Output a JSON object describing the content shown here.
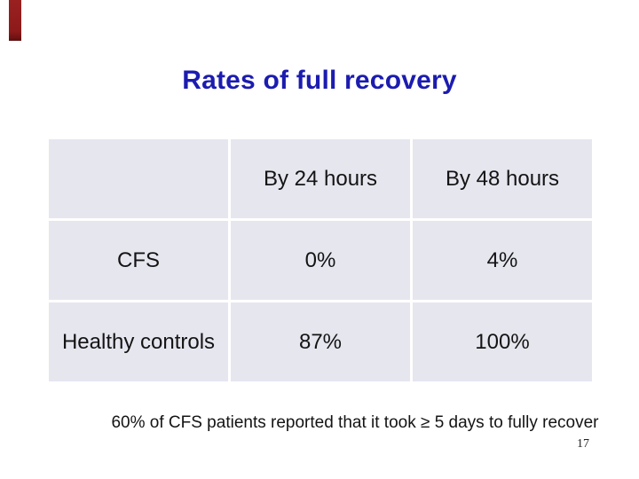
{
  "slide": {
    "title": "Rates of full recovery",
    "footnote": "60% of CFS patients reported that it took ≥ 5 days to fully recover",
    "page_number": "17"
  },
  "table": {
    "header": [
      "",
      "By 24 hours",
      "By 48 hours"
    ],
    "rows": [
      [
        "CFS",
        "0%",
        "4%"
      ],
      [
        "Healthy controls",
        "87%",
        "100%"
      ]
    ]
  },
  "colors": {
    "title_blue": "#1c1cb0",
    "cell_background": "#e6e6ef",
    "body_text": "#141414",
    "ribbon_red": "#8d1a1a",
    "slide_background": "#ffffff"
  }
}
